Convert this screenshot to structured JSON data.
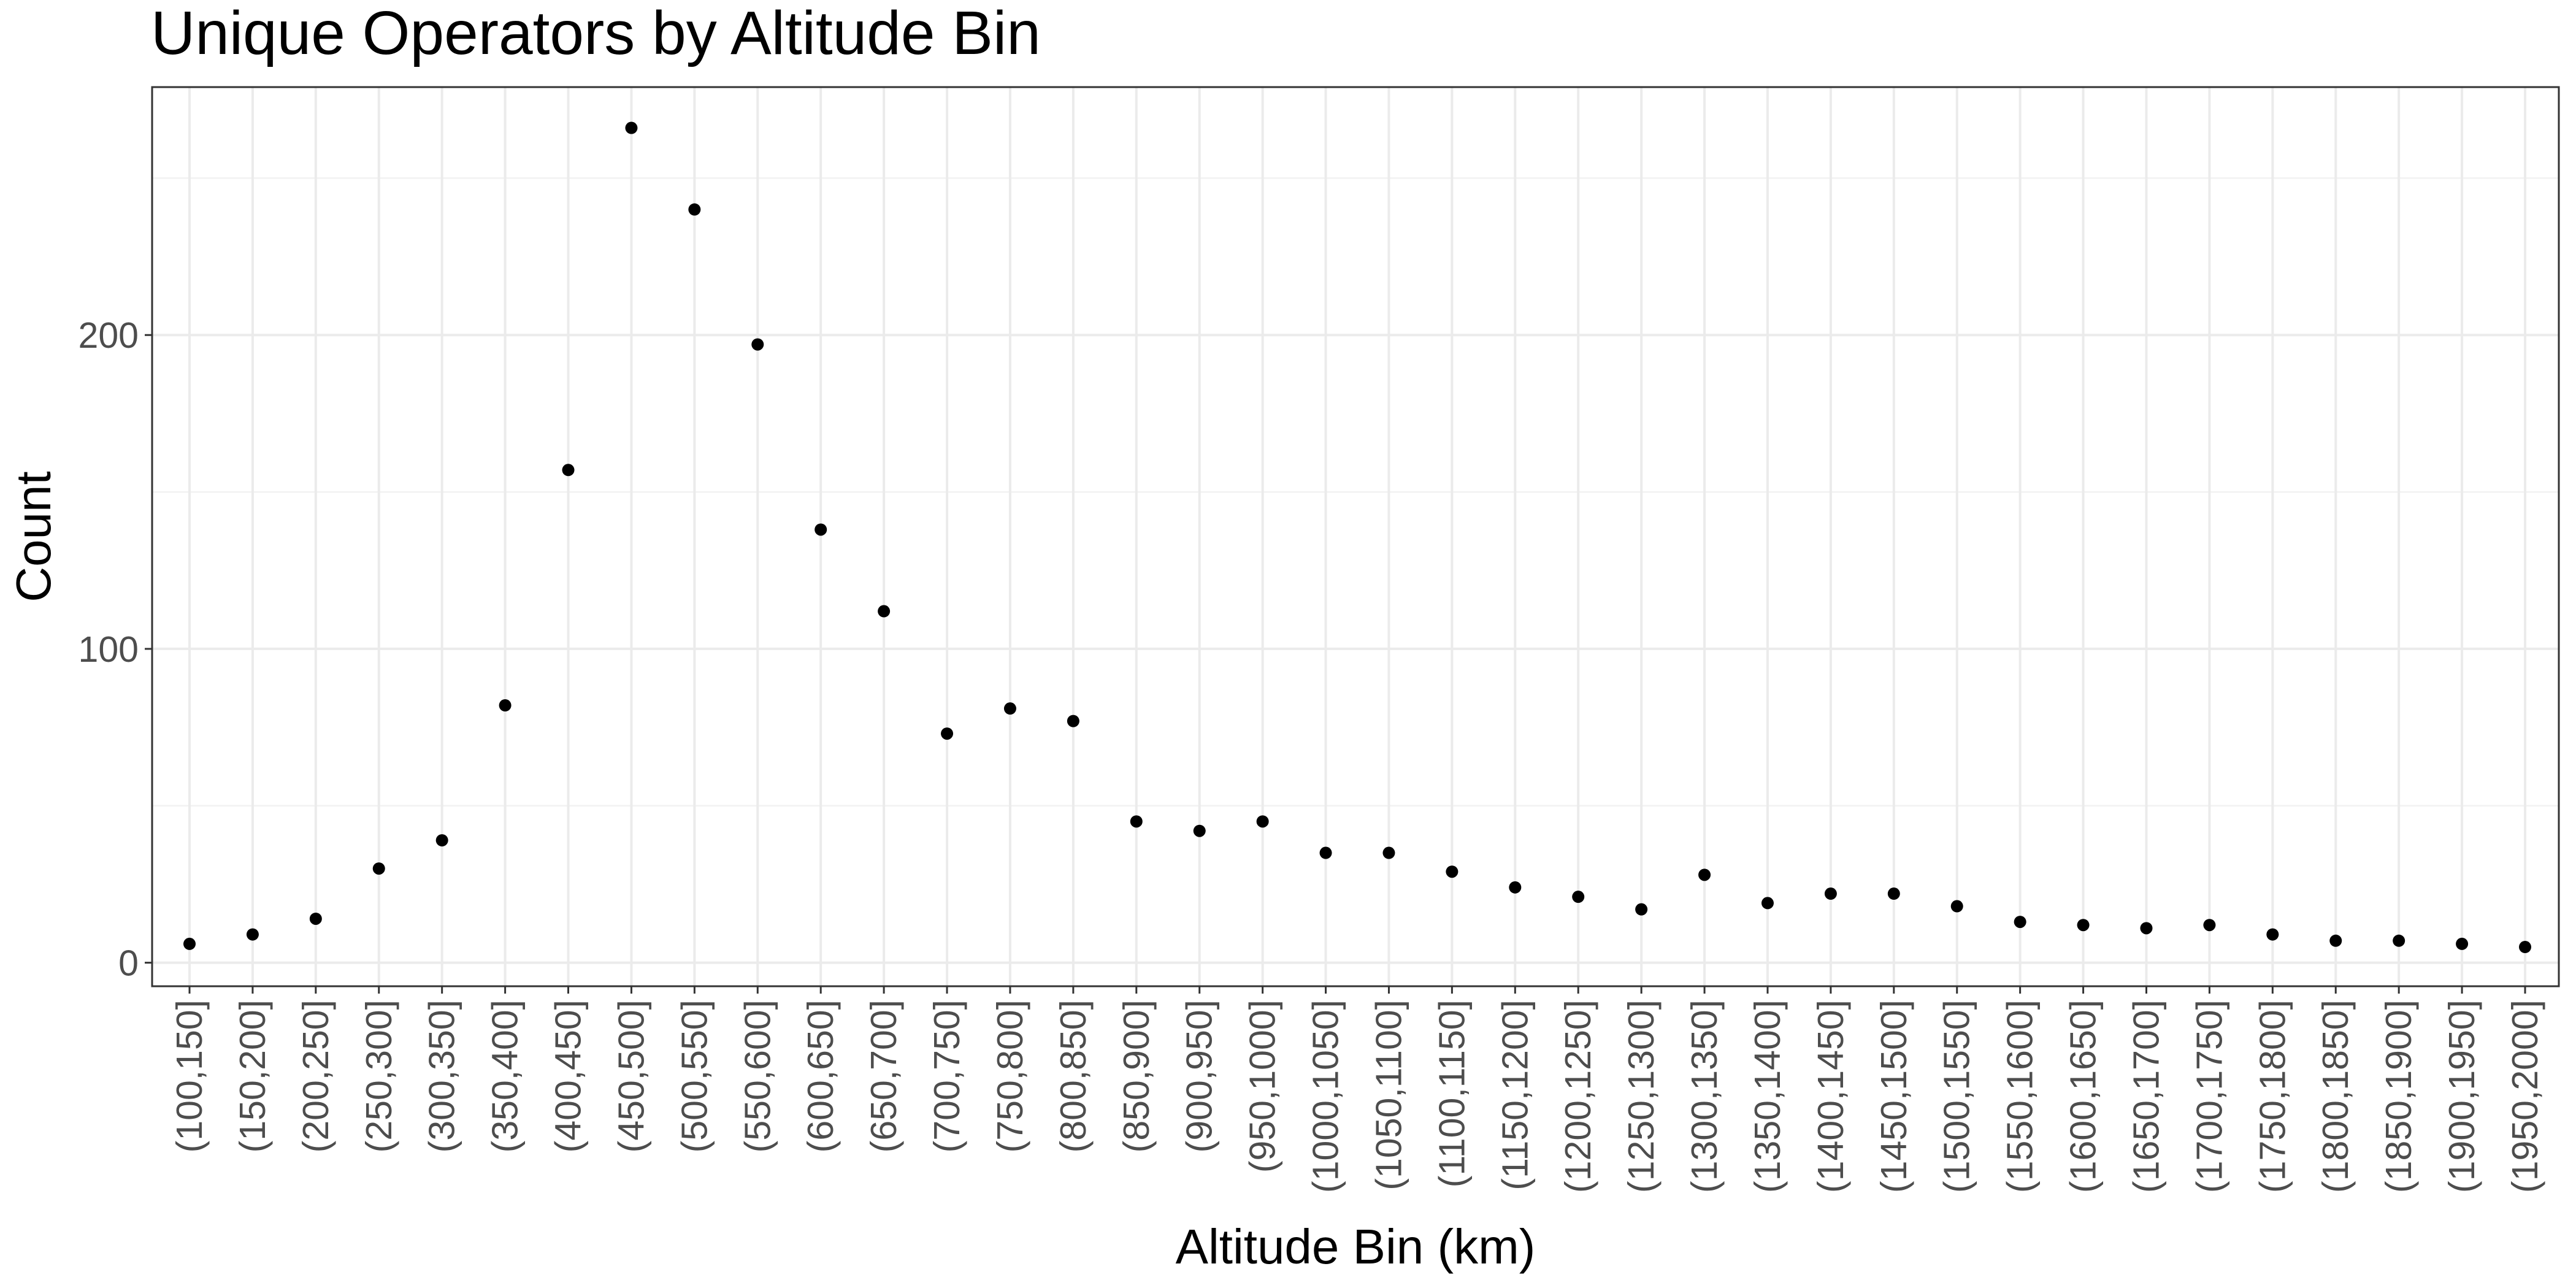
{
  "chart_data": {
    "type": "scatter",
    "title": "Unique Operators by Altitude Bin",
    "xlabel": "Altitude Bin (km)",
    "ylabel": "Count",
    "categories": [
      "(100,150]",
      "(150,200]",
      "(200,250]",
      "(250,300]",
      "(300,350]",
      "(350,400]",
      "(400,450]",
      "(450,500]",
      "(500,550]",
      "(550,600]",
      "(600,650]",
      "(650,700]",
      "(700,750]",
      "(750,800]",
      "(800,850]",
      "(850,900]",
      "(900,950]",
      "(950,1000]",
      "(1000,1050]",
      "(1050,1100]",
      "(1100,1150]",
      "(1150,1200]",
      "(1200,1250]",
      "(1250,1300]",
      "(1300,1350]",
      "(1350,1400]",
      "(1400,1450]",
      "(1450,1500]",
      "(1500,1550]",
      "(1550,1600]",
      "(1600,1650]",
      "(1650,1700]",
      "(1700,1750]",
      "(1750,1800]",
      "(1800,1850]",
      "(1850,1900]",
      "(1900,1950]",
      "(1950,2000]"
    ],
    "values": [
      6,
      9,
      14,
      30,
      39,
      82,
      157,
      266,
      240,
      197,
      138,
      112,
      73,
      81,
      77,
      45,
      42,
      45,
      35,
      35,
      29,
      24,
      21,
      17,
      28,
      19,
      22,
      22,
      18,
      13,
      12,
      11,
      12,
      9,
      7,
      7,
      6,
      5
    ],
    "ylim": [
      -7.5,
      279
    ],
    "yticks": [
      0,
      100,
      200
    ],
    "grid": true,
    "legend": "none"
  }
}
